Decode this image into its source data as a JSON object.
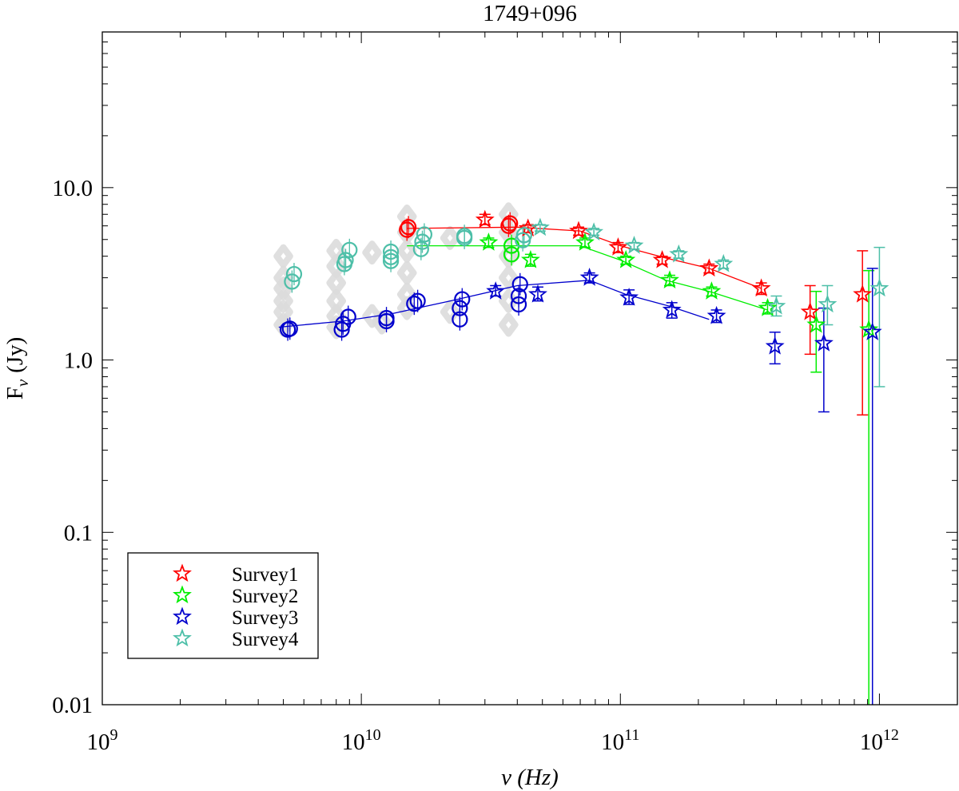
{
  "chart_data": {
    "type": "scatter",
    "title": "1749+096",
    "xlabel": "ν (Hz)",
    "ylabel_main": "F",
    "ylabel_sub": "ν",
    "ylabel_unit": "(Jy)",
    "x_scale": "log",
    "y_scale": "log",
    "xlim": [
      1000000000.0,
      2000000000000.0
    ],
    "ylim": [
      0.01,
      80
    ],
    "x_ticks": [
      {
        "value": 1000000000.0,
        "base": "10",
        "exp": "9"
      },
      {
        "value": 10000000000.0,
        "base": "10",
        "exp": "10"
      },
      {
        "value": 100000000000.0,
        "base": "10",
        "exp": "11"
      },
      {
        "value": 1000000000000.0,
        "base": "10",
        "exp": "12"
      }
    ],
    "y_ticks": [
      {
        "value": 0.01,
        "label": "0.01"
      },
      {
        "value": 0.1,
        "label": "0.1"
      },
      {
        "value": 1,
        "label": "1.0"
      },
      {
        "value": 10,
        "label": "10.0"
      }
    ],
    "legend_position": "bottom-left",
    "archival": {
      "color": "#dcdcdc",
      "x": [
        5000000000.0,
        5000000000.0,
        5000000000.0,
        5000000000.0,
        5000000000.0,
        5000000000.0,
        8000000000.0,
        8000000000.0,
        8000000000.0,
        8000000000.0,
        8000000000.0,
        8000000000.0,
        11000000000.0,
        11000000000.0,
        12000000000.0,
        15000000000.0,
        15000000000.0,
        15000000000.0,
        15000000000.0,
        15000000000.0,
        15000000000.0,
        22000000000.0,
        22000000000.0,
        37000000000.0,
        37000000000.0,
        37000000000.0,
        37000000000.0,
        37000000000.0,
        37000000000.0
      ],
      "y": [
        4.0,
        3.0,
        2.6,
        2.2,
        1.9,
        1.6,
        4.3,
        3.5,
        2.8,
        2.2,
        1.8,
        1.55,
        4.2,
        1.8,
        1.65,
        6.8,
        5.5,
        4.3,
        3.2,
        2.4,
        2.0,
        5.1,
        1.9,
        7.0,
        5.5,
        4.0,
        3.0,
        2.2,
        1.6
      ]
    },
    "series": [
      {
        "name": "Survey1",
        "color": "#ff0000",
        "fit_x": [
          15000000000.0,
          40000000000.0,
          70000000000.0,
          100000000000.0,
          150000000000.0,
          220000000000.0,
          350000000000.0
        ],
        "fit_y": [
          5.8,
          5.9,
          5.6,
          4.6,
          3.9,
          3.4,
          2.6
        ],
        "circles": [
          {
            "x": 15000000000.0,
            "y": 5.7
          },
          {
            "x": 15200000000.0,
            "y": 5.9
          },
          {
            "x": 37000000000.0,
            "y": 6.0
          },
          {
            "x": 37500000000.0,
            "y": 6.2
          }
        ],
        "stars": [
          {
            "x": 30000000000.0,
            "y": 6.5,
            "err": [
              6.1,
              7.0
            ]
          },
          {
            "x": 44000000000.0,
            "y": 5.8,
            "err": [
              5.5,
              6.1
            ]
          },
          {
            "x": 69000000000.0,
            "y": 5.6,
            "err": [
              5.3,
              5.9
            ]
          },
          {
            "x": 98000000000.0,
            "y": 4.5,
            "err": [
              4.2,
              4.8
            ]
          },
          {
            "x": 145000000000.0,
            "y": 3.8,
            "err": [
              3.6,
              4.0
            ]
          },
          {
            "x": 220000000000.0,
            "y": 3.4,
            "err": [
              3.2,
              3.6
            ]
          },
          {
            "x": 350000000000.0,
            "y": 2.6,
            "err": [
              2.4,
              2.8
            ]
          },
          {
            "x": 540000000000.0,
            "y": 1.9,
            "err": [
              1.08,
              2.7
            ]
          },
          {
            "x": 860000000000.0,
            "y": 2.4,
            "err": [
              0.48,
              4.3
            ]
          }
        ]
      },
      {
        "name": "Survey2",
        "color": "#00ee00",
        "fit_x": [
          15000000000.0,
          30000000000.0,
          70000000000.0,
          100000000000.0,
          150000000000.0,
          220000000000.0,
          370000000000.0
        ],
        "fit_y": [
          4.6,
          4.6,
          4.6,
          3.8,
          2.9,
          2.5,
          1.95
        ],
        "circles": [
          {
            "x": 38000000000.0,
            "y": 4.1
          },
          {
            "x": 38000000000.0,
            "y": 4.6
          }
        ],
        "stars": [
          {
            "x": 31000000000.0,
            "y": 4.8,
            "err": [
              4.5,
              5.1
            ]
          },
          {
            "x": 45000000000.0,
            "y": 3.8,
            "err": [
              3.5,
              4.1
            ]
          },
          {
            "x": 73000000000.0,
            "y": 4.8,
            "err": [
              4.5,
              5.1
            ]
          },
          {
            "x": 105000000000.0,
            "y": 3.8,
            "err": [
              3.6,
              4.0
            ]
          },
          {
            "x": 155000000000.0,
            "y": 2.9,
            "err": [
              2.7,
              3.1
            ]
          },
          {
            "x": 225000000000.0,
            "y": 2.5,
            "err": [
              2.35,
              2.65
            ]
          },
          {
            "x": 370000000000.0,
            "y": 2.0,
            "err": [
              1.85,
              2.15
            ]
          },
          {
            "x": 570000000000.0,
            "y": 1.6,
            "err": [
              0.85,
              2.5
            ]
          },
          {
            "x": 910000000000.0,
            "y": 1.5,
            "err": [
              0.01,
              3.3
            ]
          }
        ]
      },
      {
        "name": "Survey3",
        "color": "#0000cc",
        "fit_x": [
          4800000000.0,
          8500000000.0,
          13000000000.0,
          22000000000.0,
          40000000000.0,
          76000000000.0,
          105000000000.0,
          155000000000.0,
          220000000000.0
        ],
        "fit_y": [
          1.55,
          1.68,
          1.85,
          2.2,
          2.7,
          2.9,
          2.4,
          2.05,
          1.72
        ],
        "circles": [
          {
            "x": 5200000000.0,
            "y": 1.5
          },
          {
            "x": 5300000000.0,
            "y": 1.52
          },
          {
            "x": 8400000000.0,
            "y": 1.5
          },
          {
            "x": 8500000000.0,
            "y": 1.62
          },
          {
            "x": 8900000000.0,
            "y": 1.78
          },
          {
            "x": 12500000000.0,
            "y": 1.68
          },
          {
            "x": 12500000000.0,
            "y": 1.75
          },
          {
            "x": 16000000000.0,
            "y": 2.12
          },
          {
            "x": 16500000000.0,
            "y": 2.2
          },
          {
            "x": 24000000000.0,
            "y": 1.72
          },
          {
            "x": 24000000000.0,
            "y": 2.0
          },
          {
            "x": 24500000000.0,
            "y": 2.25
          },
          {
            "x": 40500000000.0,
            "y": 2.1
          },
          {
            "x": 40500000000.0,
            "y": 2.35
          },
          {
            "x": 41000000000.0,
            "y": 2.75
          }
        ],
        "stars": [
          {
            "x": 33000000000.0,
            "y": 2.5,
            "err": [
              2.35,
              2.7
            ]
          },
          {
            "x": 48000000000.0,
            "y": 2.4,
            "err": [
              2.2,
              2.65
            ]
          },
          {
            "x": 76000000000.0,
            "y": 3.0,
            "err": [
              2.8,
              3.2
            ]
          },
          {
            "x": 108000000000.0,
            "y": 2.3,
            "err": [
              2.1,
              2.55
            ]
          },
          {
            "x": 158000000000.0,
            "y": 1.95,
            "err": [
              1.75,
              2.15
            ]
          },
          {
            "x": 235000000000.0,
            "y": 1.8,
            "err": [
              1.65,
              1.95
            ]
          },
          {
            "x": 395000000000.0,
            "y": 1.2,
            "err": [
              0.95,
              1.45
            ]
          },
          {
            "x": 610000000000.0,
            "y": 1.25,
            "err": [
              0.5,
              2.0
            ]
          },
          {
            "x": 940000000000.0,
            "y": 1.45,
            "err": [
              0.01,
              3.4
            ]
          }
        ]
      },
      {
        "name": "Survey4",
        "color": "#4dbfa8",
        "circles": [
          {
            "x": 5400000000.0,
            "y": 2.85
          },
          {
            "x": 5500000000.0,
            "y": 3.15
          },
          {
            "x": 8600000000.0,
            "y": 3.6
          },
          {
            "x": 8700000000.0,
            "y": 3.8
          },
          {
            "x": 9000000000.0,
            "y": 4.35
          },
          {
            "x": 13000000000.0,
            "y": 3.75
          },
          {
            "x": 13000000000.0,
            "y": 3.95
          },
          {
            "x": 13000000000.0,
            "y": 4.25
          },
          {
            "x": 17000000000.0,
            "y": 4.4
          },
          {
            "x": 17200000000.0,
            "y": 4.85
          },
          {
            "x": 17500000000.0,
            "y": 5.35
          },
          {
            "x": 25000000000.0,
            "y": 5.1
          },
          {
            "x": 25000000000.0,
            "y": 5.25
          },
          {
            "x": 42000000000.0,
            "y": 4.95
          },
          {
            "x": 42500000000.0,
            "y": 5.3
          }
        ],
        "stars": [
          {
            "x": 49000000000.0,
            "y": 5.85,
            "err": [
              5.6,
              6.1
            ]
          },
          {
            "x": 79000000000.0,
            "y": 5.5,
            "err": [
              5.3,
              5.8
            ]
          },
          {
            "x": 113000000000.0,
            "y": 4.6,
            "err": [
              4.4,
              4.8
            ]
          },
          {
            "x": 168000000000.0,
            "y": 4.1,
            "err": [
              3.9,
              4.3
            ]
          },
          {
            "x": 250000000000.0,
            "y": 3.6,
            "err": [
              3.4,
              3.8
            ]
          },
          {
            "x": 400000000000.0,
            "y": 2.05,
            "err": [
              1.8,
              2.35
            ]
          },
          {
            "x": 630000000000.0,
            "y": 2.1,
            "err": [
              1.6,
              2.7
            ]
          },
          {
            "x": 1000000000000.0,
            "y": 2.6,
            "err": [
              0.7,
              4.5
            ]
          }
        ]
      }
    ]
  }
}
